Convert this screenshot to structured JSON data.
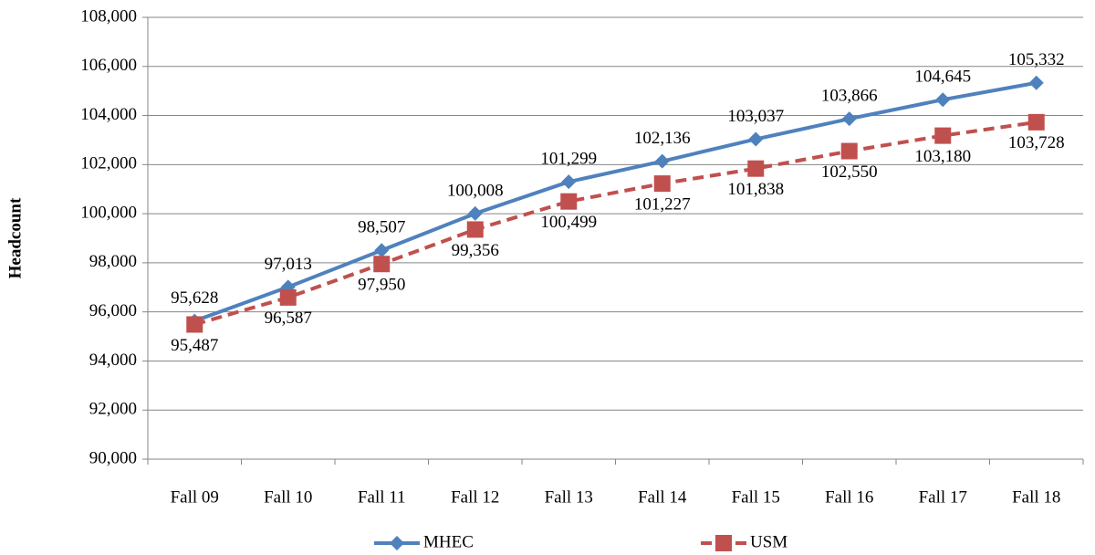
{
  "chart_data": {
    "type": "line",
    "y_label": "Headcount",
    "categories": [
      "Fall 09",
      "Fall 10",
      "Fall 11",
      "Fall 12",
      "Fall 13",
      "Fall 14",
      "Fall 15",
      "Fall 16",
      "Fall 17",
      "Fall 18"
    ],
    "series": [
      {
        "name": "MHEC",
        "color": "#4f81bd",
        "marker": "diamond",
        "line_style": "solid",
        "values": [
          95628,
          97013,
          98507,
          100008,
          101299,
          102136,
          103037,
          103866,
          104645,
          105332
        ],
        "value_labels": [
          "95,628",
          "97,013",
          "98,507",
          "100,008",
          "101,299",
          "102,136",
          "103,037",
          "103,866",
          "104,645",
          "105,332"
        ]
      },
      {
        "name": "USM",
        "color": "#c0504d",
        "marker": "square",
        "line_style": "dashed",
        "values": [
          95487,
          96587,
          97950,
          99356,
          100499,
          101227,
          101838,
          102550,
          103180,
          103728
        ],
        "value_labels": [
          "95,487",
          "96,587",
          "97,950",
          "99,356",
          "100,499",
          "101,227",
          "101,838",
          "102,550",
          "103,180",
          "103,728"
        ]
      }
    ],
    "ylim": [
      90000,
      108000
    ],
    "yticks": [
      {
        "value": 90000,
        "label": "90,000"
      },
      {
        "value": 92000,
        "label": "92,000"
      },
      {
        "value": 94000,
        "label": "94,000"
      },
      {
        "value": 96000,
        "label": "96,000"
      },
      {
        "value": 98000,
        "label": "98,000"
      },
      {
        "value": 100000,
        "label": "100,000"
      },
      {
        "value": 102000,
        "label": "102,000"
      },
      {
        "value": 104000,
        "label": "104,000"
      },
      {
        "value": 106000,
        "label": "106,000"
      },
      {
        "value": 108000,
        "label": "108,000"
      }
    ],
    "grid": true,
    "legend": "bottom"
  }
}
